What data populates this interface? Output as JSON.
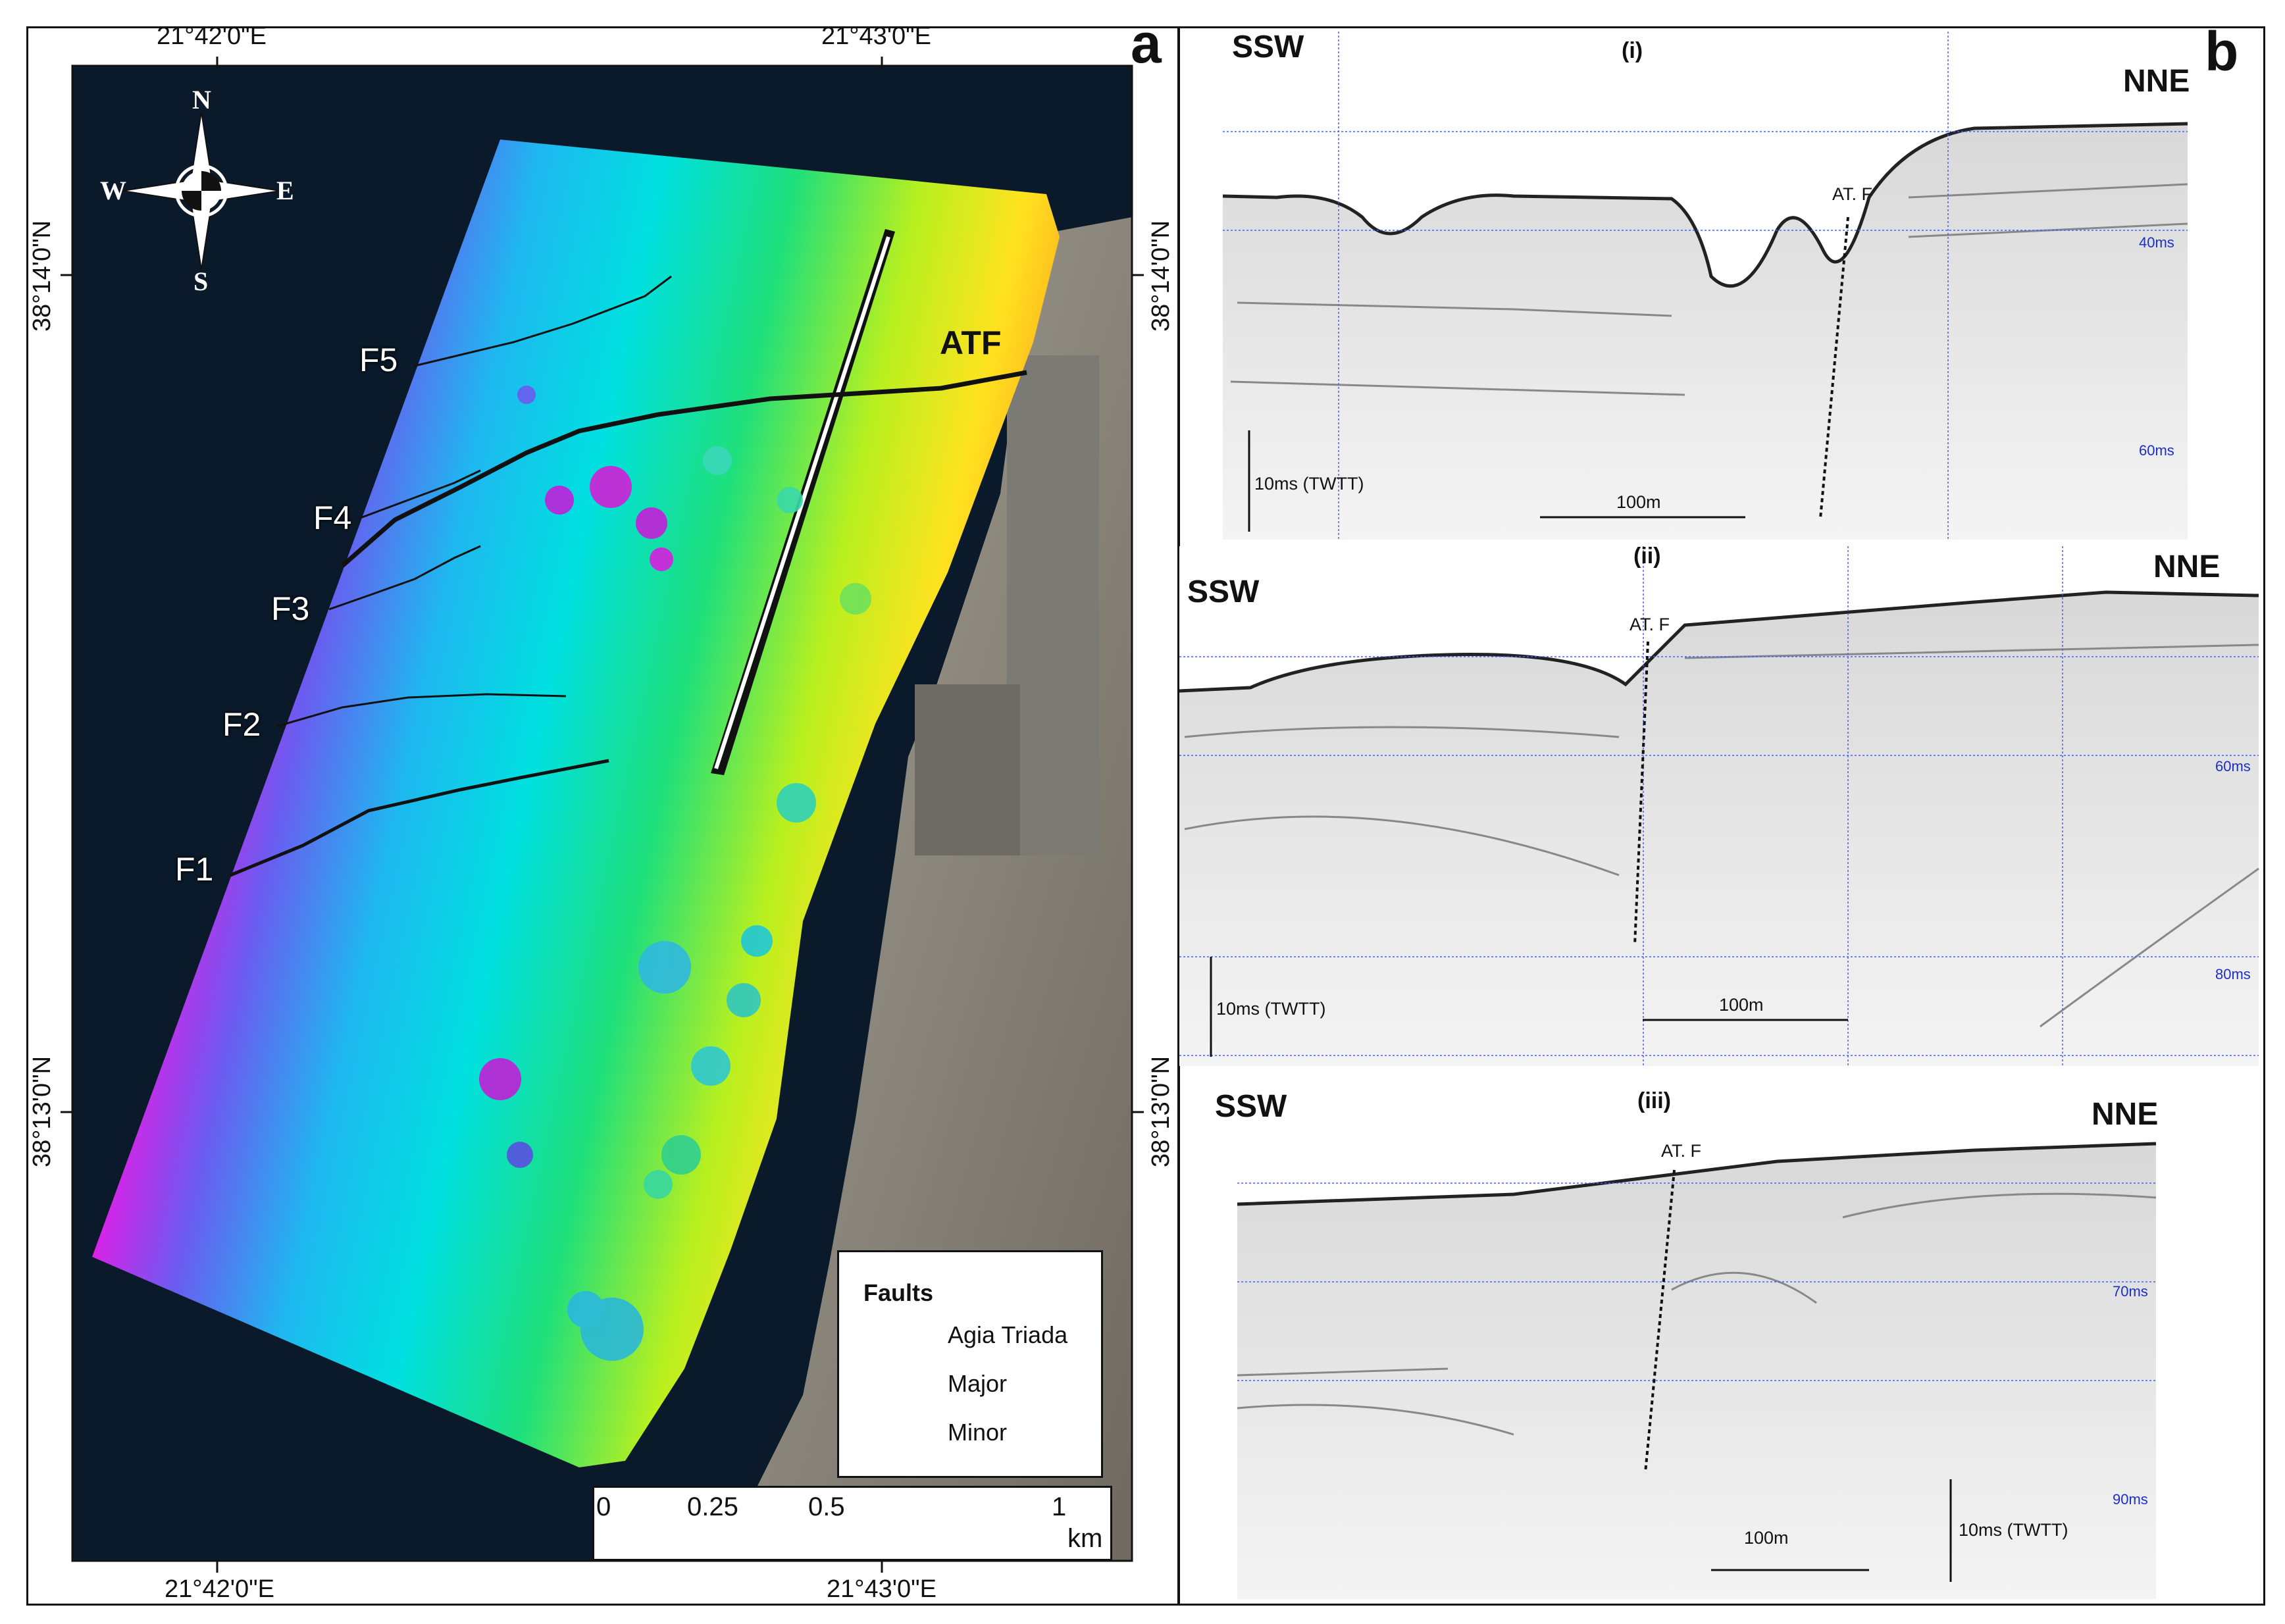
{
  "panel_a": {
    "letter": "a",
    "coords": {
      "top_left": "21°42'0\"E",
      "top_right": "21°43'0\"E",
      "bottom_left": "21°42'0\"E",
      "bottom_right": "21°43'0\"E",
      "left_upper": "38°14'0\"N",
      "left_lower": "38°13'0\"N",
      "right_upper": "38°14'0\"N",
      "right_lower": "38°13'0\"N"
    },
    "compass": {
      "n": "N",
      "s": "S",
      "e": "E",
      "w": "W"
    },
    "faults": [
      "F5",
      "F4",
      "F3",
      "F2",
      "F1"
    ],
    "atf": "ATF",
    "legend": {
      "title": "Faults",
      "items": [
        "Agia Triada",
        "Major",
        "Minor"
      ]
    },
    "scale": {
      "ticks": [
        "0",
        "0.25",
        "0.5",
        "1"
      ],
      "unit": "km"
    },
    "colors": {
      "deep": "#9b1fd6",
      "mid": "#00e5e5",
      "shallow": "#ff2a00",
      "water": "#0b1a2a",
      "land": "#8f8a80"
    }
  },
  "panel_b": {
    "letter": "b",
    "profiles": [
      {
        "id": "(i)",
        "left": "SSW",
        "right": "NNE",
        "fault": "AT. F",
        "ms": [
          "40ms",
          "60ms"
        ],
        "vscale": "10ms (TWTT)",
        "hscale": "100m"
      },
      {
        "id": "(ii)",
        "left": "SSW",
        "right": "NNE",
        "fault": "AT. F",
        "ms": [
          "60ms",
          "80ms"
        ],
        "vscale": "10ms (TWTT)",
        "hscale": "100m"
      },
      {
        "id": "(iii)",
        "left": "SSW",
        "right": "NNE",
        "fault": "AT. F",
        "ms": [
          "70ms",
          "90ms"
        ],
        "vscale": "10ms (TWTT)",
        "hscale": "100m"
      }
    ]
  }
}
